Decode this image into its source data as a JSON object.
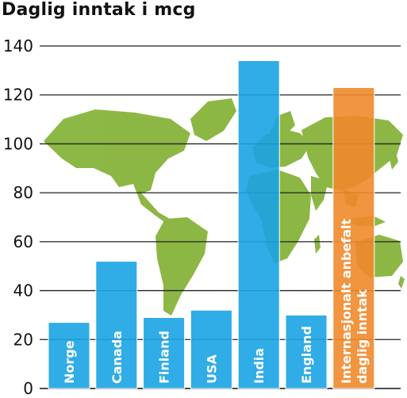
{
  "chart_data": {
    "type": "bar",
    "title": "Daglig inntak i mcg",
    "xlabel": "",
    "ylabel": "",
    "ylim": [
      0,
      145
    ],
    "yticks": [
      0,
      20,
      40,
      60,
      80,
      100,
      120,
      140
    ],
    "grid": true,
    "categories": [
      "Norge",
      "Canada",
      "Finland",
      "USA",
      "India",
      "England",
      "Internasjonalt anbefalt daglig inntak"
    ],
    "category_lines": [
      [
        "Norge"
      ],
      [
        "Canada"
      ],
      [
        "Finland"
      ],
      [
        "USA"
      ],
      [
        "India"
      ],
      [
        "England"
      ],
      [
        "Internasjonalt anbefalt",
        "daglig inntak"
      ]
    ],
    "values": [
      27,
      52,
      29,
      32,
      134,
      30,
      123
    ],
    "colors": [
      "#1aa3e3",
      "#1aa3e3",
      "#1aa3e3",
      "#1aa3e3",
      "#1aa3e3",
      "#1aa3e3",
      "#f08a2c"
    ],
    "background_image": "world-map-green"
  },
  "colors": {
    "primary_bar": "#1aa3e3",
    "highlight_bar": "#f08a2c",
    "map": "#86b43b",
    "grid": "#222222"
  }
}
